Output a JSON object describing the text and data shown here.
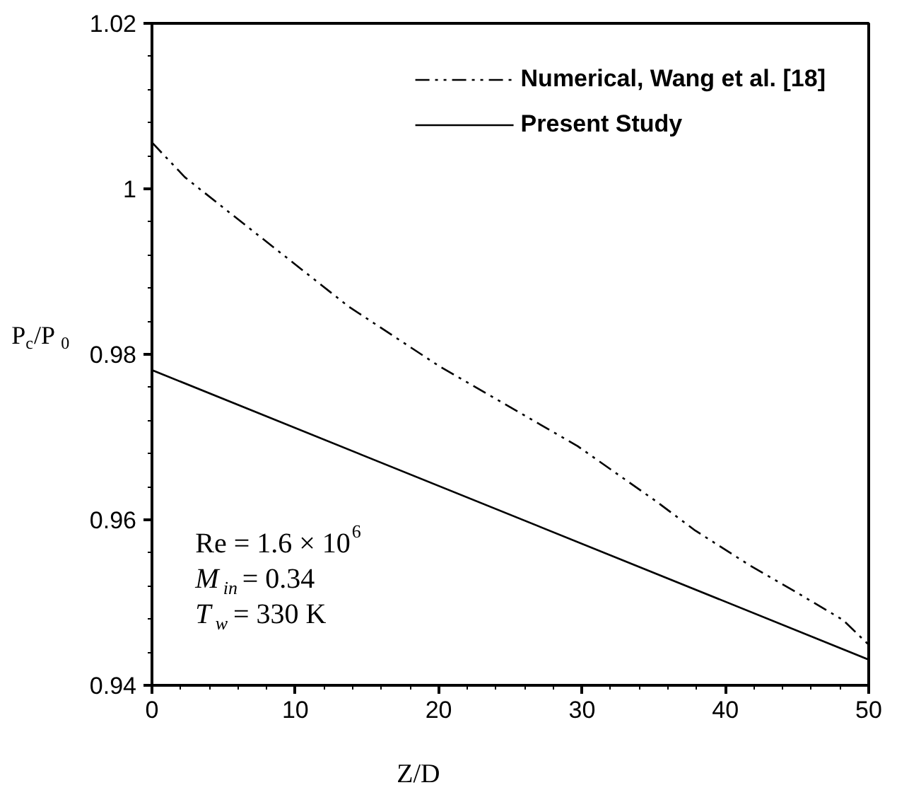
{
  "chart_data": {
    "type": "line",
    "xlabel": "Z/D",
    "ylabel": "P$_{c}$/P$_{0}$",
    "xlim": [
      0,
      50
    ],
    "ylim": [
      0.94,
      1.02
    ],
    "xticks": [
      0,
      10,
      20,
      30,
      40,
      50
    ],
    "yticks": [
      0.94,
      0.96,
      0.98,
      1,
      1.02
    ],
    "grid": false,
    "legend": "top right",
    "series": [
      {
        "name": "Numerical, Wang et al. [18]",
        "color": "#000000",
        "line_style": "dashed",
        "x": [
          0,
          2.3,
          5.8,
          13.7,
          20.1,
          29.7,
          35.2,
          37.9,
          41.7,
          44.8,
          48.2,
          50
        ],
        "values": [
          1.0056,
          1.0014,
          0.9966,
          0.9858,
          0.9785,
          0.9689,
          0.9622,
          0.9587,
          0.9545,
          0.9514,
          0.9479,
          0.9449
        ]
      },
      {
        "name": "Present Study",
        "color": "#000000",
        "line_style": "solid",
        "x": [
          0,
          50
        ],
        "values": [
          0.9781,
          0.9431
        ]
      }
    ],
    "annotations": [
      "Re = 1.6 × 10$^{6}$",
      "M$_{in}$ = 0.34",
      "T$_{w}$ = 330 K"
    ]
  }
}
